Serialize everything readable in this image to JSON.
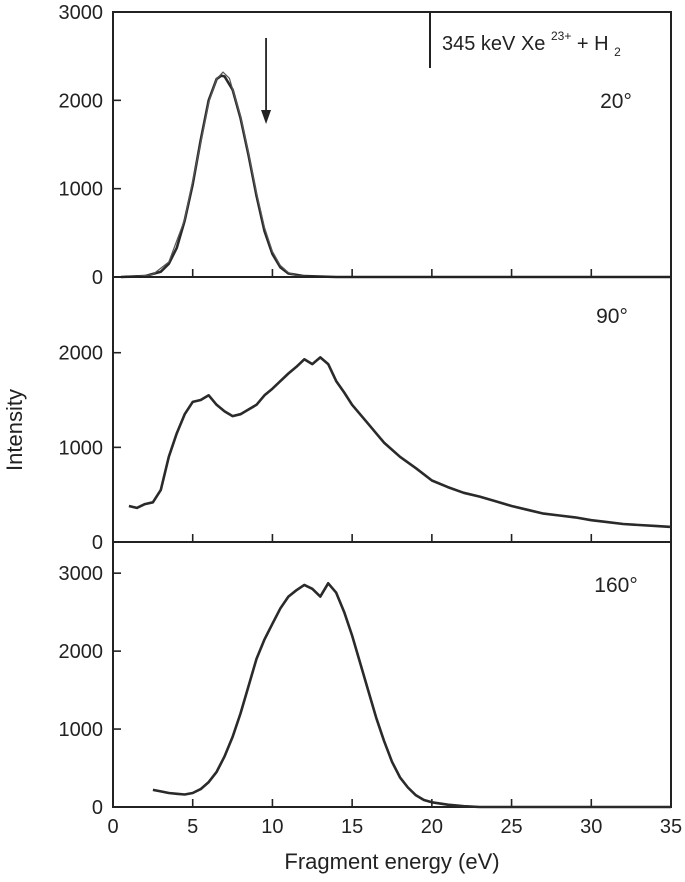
{
  "figure": {
    "ylabel": "Intensity",
    "xlabel": "Fragment energy (eV)",
    "legend": {
      "text_main": "345 keV Xe",
      "text_sup": "23+",
      "text_plus": " + H",
      "text_sub": "2"
    },
    "colors": {
      "line": "#2a2a2a",
      "frame": "#222222",
      "background": "#ffffff"
    }
  },
  "chart_data": [
    {
      "type": "line",
      "panel": "top",
      "label": "20°",
      "xlim": [
        0,
        35
      ],
      "ylim": [
        0,
        3000
      ],
      "xticks": [
        0,
        5,
        10,
        15,
        20,
        25,
        30,
        35
      ],
      "yticks": [
        0,
        1000,
        2000,
        3000
      ],
      "ytick_labels": [
        "0",
        "1000",
        "2000",
        "3000"
      ],
      "arrow_at_x": 9.6,
      "series": [
        {
          "x": [
            0.5,
            2.0,
            3.0,
            3.5,
            4.0,
            4.5,
            5.0,
            5.5,
            6.0,
            6.5,
            6.8,
            7.0,
            7.5,
            8.0,
            8.5,
            9.0,
            9.5,
            10.0,
            10.5,
            11.0,
            12.0,
            14.0,
            20.0,
            25.0,
            30.0,
            35.0
          ],
          "y": [
            0,
            10,
            60,
            150,
            330,
            640,
            1050,
            1550,
            2000,
            2240,
            2280,
            2270,
            2120,
            1800,
            1380,
            920,
            520,
            260,
            110,
            40,
            10,
            0,
            0,
            0,
            0,
            0
          ]
        },
        {
          "style": "fit",
          "x": [
            1.5,
            2.5,
            3.5,
            4.5,
            5.5,
            6.0,
            6.5,
            6.9,
            7.3,
            8.0,
            8.5,
            9.0,
            9.5,
            10.0,
            10.5,
            11.0,
            11.5,
            12.5
          ],
          "y": [
            5,
            30,
            170,
            650,
            1520,
            1980,
            2240,
            2320,
            2250,
            1820,
            1400,
            950,
            560,
            290,
            130,
            50,
            15,
            0
          ]
        }
      ]
    },
    {
      "type": "line",
      "panel": "middle",
      "label": "90°",
      "xlim": [
        0,
        35
      ],
      "ylim": [
        0,
        2800
      ],
      "xticks": [
        0,
        5,
        10,
        15,
        20,
        25,
        30,
        35
      ],
      "yticks": [
        0,
        1000,
        2000
      ],
      "ytick_labels": [
        "0",
        "1000",
        "2000"
      ],
      "series": [
        {
          "x": [
            1.0,
            1.5,
            2.0,
            2.5,
            3.0,
            3.5,
            4.0,
            4.5,
            5.0,
            5.5,
            6.0,
            6.5,
            7.0,
            7.5,
            8.0,
            8.5,
            9.0,
            9.5,
            10.0,
            10.5,
            11.0,
            11.5,
            12.0,
            12.5,
            13.0,
            13.5,
            14.0,
            14.5,
            15.0,
            16.0,
            17.0,
            18.0,
            19.0,
            20.0,
            21.0,
            22.0,
            23.0,
            24.0,
            25.0,
            26.0,
            27.0,
            28.0,
            29.0,
            30.0,
            31.0,
            32.0,
            33.0,
            34.0,
            35.0
          ],
          "y": [
            380,
            360,
            400,
            420,
            550,
            900,
            1150,
            1350,
            1480,
            1500,
            1550,
            1450,
            1380,
            1330,
            1350,
            1400,
            1450,
            1550,
            1620,
            1700,
            1780,
            1850,
            1930,
            1880,
            1950,
            1880,
            1700,
            1580,
            1450,
            1250,
            1050,
            900,
            780,
            650,
            580,
            520,
            480,
            430,
            380,
            340,
            300,
            280,
            260,
            230,
            210,
            190,
            180,
            170,
            160
          ]
        }
      ]
    },
    {
      "type": "line",
      "panel": "bottom",
      "label": "160°",
      "xlim": [
        0,
        35
      ],
      "ylim": [
        0,
        3400
      ],
      "xticks": [
        0,
        5,
        10,
        15,
        20,
        25,
        30,
        35
      ],
      "xtick_labels": [
        "0",
        "5",
        "10",
        "15",
        "20",
        "25",
        "30",
        "35"
      ],
      "yticks": [
        0,
        1000,
        2000,
        3000
      ],
      "ytick_labels": [
        "0",
        "1000",
        "2000",
        "3000"
      ],
      "series": [
        {
          "x": [
            2.5,
            3.0,
            3.5,
            4.0,
            4.5,
            5.0,
            5.5,
            6.0,
            6.5,
            7.0,
            7.5,
            8.0,
            8.5,
            9.0,
            9.5,
            10.0,
            10.5,
            11.0,
            11.5,
            12.0,
            12.5,
            13.0,
            13.5,
            14.0,
            14.5,
            15.0,
            15.5,
            16.0,
            16.5,
            17.0,
            17.5,
            18.0,
            18.5,
            19.0,
            19.5,
            20.0,
            21.0,
            22.0,
            23.0,
            25.0,
            30.0,
            35.0
          ],
          "y": [
            220,
            200,
            180,
            170,
            160,
            180,
            230,
            320,
            450,
            650,
            900,
            1200,
            1550,
            1900,
            2150,
            2350,
            2550,
            2700,
            2780,
            2850,
            2800,
            2700,
            2870,
            2750,
            2500,
            2200,
            1850,
            1500,
            1150,
            850,
            580,
            380,
            250,
            150,
            90,
            60,
            30,
            10,
            0,
            0,
            0,
            0
          ]
        }
      ]
    }
  ]
}
